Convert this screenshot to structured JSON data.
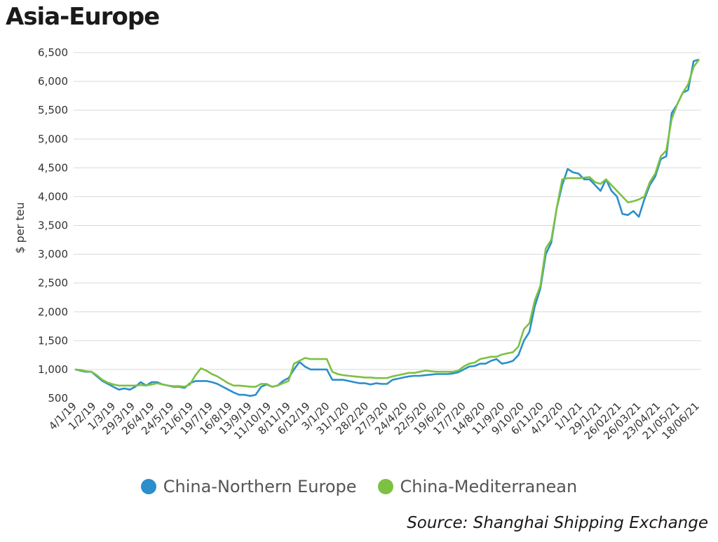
{
  "title": "Asia-Europe",
  "source": "Source: Shanghai Shipping Exchange",
  "colors": {
    "northern_europe": "#2a8fcb",
    "mediterranean": "#7cc142",
    "grid": "#d9d9d9"
  },
  "chart_data": {
    "type": "line",
    "ylabel": "$ per teu",
    "ylim": [
      500,
      6500
    ],
    "yticks": [
      500,
      1000,
      1500,
      2000,
      2500,
      3000,
      3500,
      4000,
      4500,
      5000,
      5500,
      6000,
      6500
    ],
    "ytick_labels": [
      "500",
      "1,000",
      "1,500",
      "2,000",
      "2,500",
      "3,000",
      "3,500",
      "4,000",
      "4,500",
      "5,000",
      "5,500",
      "6,000",
      "6,500"
    ],
    "xtick_labels": [
      "4/1/19",
      "1/2/19",
      "1/3/19",
      "29/3/19",
      "26/4/19",
      "24/5/19",
      "21/6/19",
      "19/7/19",
      "16/8/19",
      "13/9/19",
      "11/10/19",
      "8/11/19",
      "6/12/19",
      "3/1/20",
      "31/1/20",
      "28/2/20",
      "27/3/20",
      "24/4/20",
      "22/5/20",
      "19/6/20",
      "17/7/20",
      "14/8/20",
      "11/9/20",
      "9/10/20",
      "6/11/20",
      "4/12/20",
      "1/1/21",
      "29/1/21",
      "26/02/21",
      "26/03/21",
      "23/04/21",
      "21/05/21",
      "18/06/21"
    ],
    "grid": true,
    "legend_position": "bottom",
    "series": [
      {
        "name": "China-Northern Europe",
        "values": [
          1000,
          980,
          960,
          960,
          880,
          800,
          750,
          700,
          650,
          670,
          650,
          700,
          780,
          720,
          780,
          780,
          740,
          720,
          700,
          700,
          680,
          760,
          800,
          800,
          800,
          780,
          750,
          700,
          650,
          600,
          560,
          560,
          540,
          560,
          700,
          740,
          700,
          720,
          800,
          850,
          1000,
          1130,
          1050,
          1000,
          1000,
          1000,
          1000,
          820,
          820,
          820,
          800,
          780,
          760,
          760,
          740,
          760,
          750,
          750,
          820,
          840,
          860,
          880,
          890,
          890,
          900,
          910,
          920,
          920,
          920,
          930,
          950,
          1000,
          1050,
          1060,
          1100,
          1100,
          1150,
          1180,
          1100,
          1120,
          1150,
          1250,
          1500,
          1650,
          2100,
          2400,
          3000,
          3200,
          3800,
          4200,
          4480,
          4420,
          4400,
          4300,
          4300,
          4200,
          4100,
          4300,
          4100,
          4000,
          3700,
          3680,
          3750,
          3650,
          3950,
          4200,
          4350,
          4650,
          4700,
          5450,
          5600,
          5800,
          5850,
          6350,
          6380
        ]
      },
      {
        "name": "China-Mediterranean",
        "values": [
          1000,
          990,
          970,
          960,
          900,
          820,
          770,
          740,
          720,
          720,
          720,
          720,
          730,
          720,
          740,
          760,
          740,
          720,
          710,
          710,
          700,
          740,
          900,
          1020,
          980,
          920,
          880,
          820,
          760,
          720,
          720,
          710,
          700,
          700,
          750,
          750,
          700,
          720,
          760,
          800,
          1100,
          1150,
          1200,
          1180,
          1180,
          1180,
          1180,
          960,
          920,
          900,
          890,
          880,
          870,
          860,
          860,
          850,
          850,
          850,
          880,
          900,
          920,
          940,
          940,
          960,
          980,
          970,
          960,
          960,
          960,
          960,
          980,
          1050,
          1100,
          1120,
          1180,
          1200,
          1220,
          1220,
          1260,
          1280,
          1300,
          1400,
          1700,
          1800,
          2200,
          2450,
          3100,
          3250,
          3800,
          4300,
          4320,
          4320,
          4320,
          4330,
          4340,
          4250,
          4220,
          4300,
          4200,
          4100,
          4000,
          3900,
          3920,
          3950,
          4000,
          4250,
          4400,
          4700,
          4800,
          5350,
          5600,
          5800,
          5950,
          6250,
          6380
        ]
      }
    ]
  }
}
